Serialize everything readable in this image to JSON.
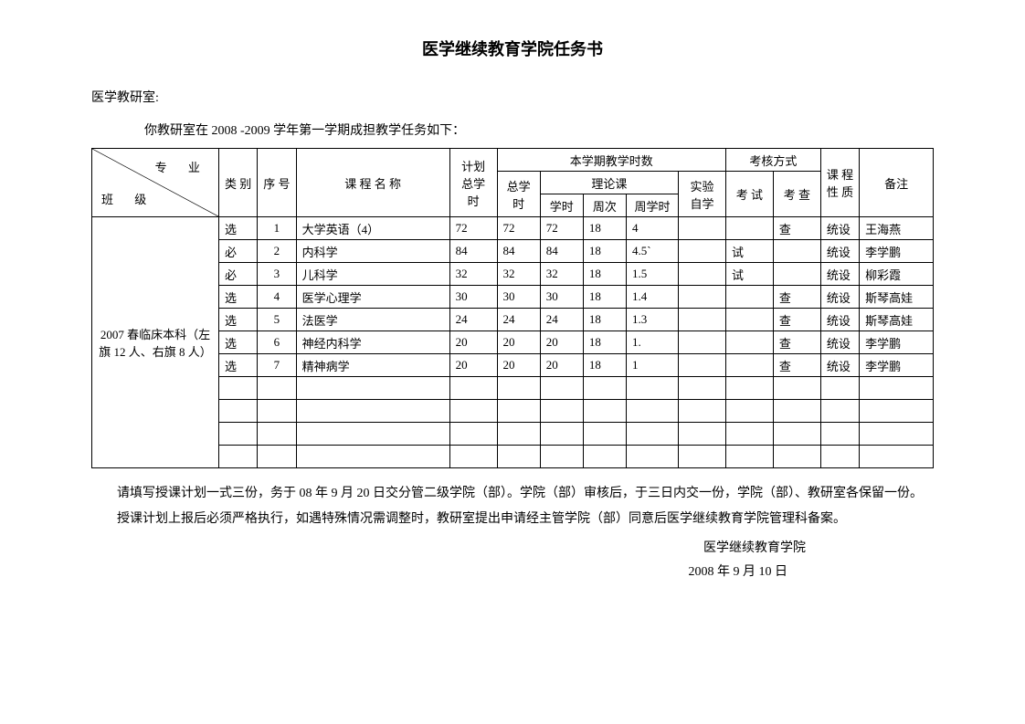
{
  "title": "医学继续教育学院任务书",
  "intro1": "医学教研室:",
  "intro2": "你教研室在 2008 -2009 学年第一学期成担教学任务如下：",
  "headers": {
    "diag_top": "专  业",
    "diag_bot": "班    级",
    "leibie": "类 别",
    "xuhao": "序 号",
    "course_name": "课    程    名    称",
    "plan_hours": "计划总学时",
    "this_term": "本学期教学时数",
    "kaohe": "考核方式",
    "kxz": "课 程 性 质",
    "beizhu": "备注",
    "zongxueshi": "总学时",
    "lilunke": "理论课",
    "shiyan": "实验自学",
    "kaoshi": "考 试",
    "kaocha": "考 查",
    "xueshi": "学时",
    "zhouci": "周次",
    "zhouxueshi": "周学时"
  },
  "class_label": "2007 春临床本科（左旗 12 人、右旗 8 人）",
  "rows": [
    {
      "lb": "选",
      "no": "1",
      "name": "大学英语（4）",
      "plan": "72",
      "zx": "72",
      "xs": "72",
      "zc": "18",
      "zxs": "4",
      "sy": "",
      "ex": "",
      "ck": "查",
      "kxz": "统设",
      "bz": "王海燕"
    },
    {
      "lb": "必",
      "no": "2",
      "name": "内科学",
      "plan": "84",
      "zx": "84",
      "xs": "84",
      "zc": "18",
      "zxs": "4.5`",
      "sy": "",
      "ex": "试",
      "ck": "",
      "kxz": "统设",
      "bz": "李学鹏"
    },
    {
      "lb": "必",
      "no": "3",
      "name": "儿科学",
      "plan": "32",
      "zx": "32",
      "xs": "32",
      "zc": "18",
      "zxs": "1.5",
      "sy": "",
      "ex": "试",
      "ck": "",
      "kxz": "统设",
      "bz": "柳彩霞"
    },
    {
      "lb": "选",
      "no": "4",
      "name": "医学心理学",
      "plan": "30",
      "zx": "30",
      "xs": "30",
      "zc": "18",
      "zxs": "1.4",
      "sy": "",
      "ex": "",
      "ck": "查",
      "kxz": "统设",
      "bz": "斯琴高娃"
    },
    {
      "lb": "选",
      "no": "5",
      "name": "法医学",
      "plan": "24",
      "zx": "24",
      "xs": "24",
      "zc": "18",
      "zxs": "1.3",
      "sy": "",
      "ex": "",
      "ck": "查",
      "kxz": "统设",
      "bz": "斯琴高娃"
    },
    {
      "lb": "选",
      "no": "6",
      "name": "神经内科学",
      "plan": "20",
      "zx": "20",
      "xs": "20",
      "zc": "18",
      "zxs": "1.",
      "sy": "",
      "ex": "",
      "ck": "查",
      "kxz": "统设",
      "bz": "李学鹏"
    },
    {
      "lb": "选",
      "no": "7",
      "name": "精神病学",
      "plan": "20",
      "zx": "20",
      "xs": "20",
      "zc": "18",
      "zxs": "1",
      "sy": "",
      "ex": "",
      "ck": "查",
      "kxz": "统设",
      "bz": "李学鹏"
    }
  ],
  "blank_rows": 4,
  "footnote1": "请填写授课计划一式三份，务于 08 年 9 月 20 日交分管二级学院（部）。学院（部）审核后，于三日内交一份，学院（部）、教研室各保留一份。",
  "footnote2": "授课计划上报后必须严格执行，如遇特殊情况需调整时，教研室提出申请经主管学院（部）同意后医学继续教育学院管理科备案。",
  "signature": "医学继续教育学院",
  "date": "2008  年 9 月 10 日",
  "colors": {
    "border": "#000000",
    "text": "#000000",
    "bg": "#ffffff"
  }
}
